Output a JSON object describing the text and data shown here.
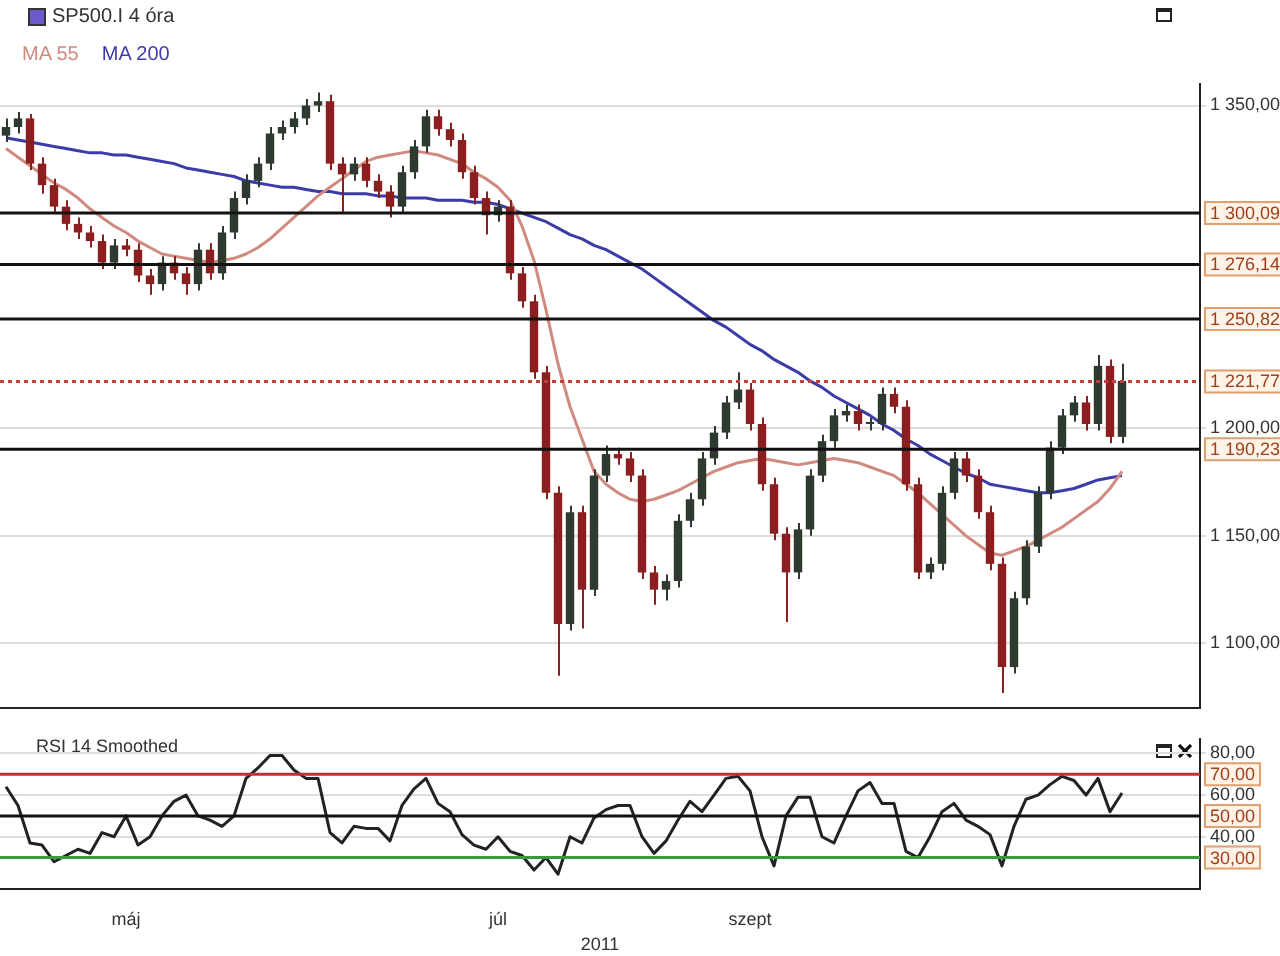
{
  "chart_data": [
    {
      "type": "candlestick",
      "title": "SP500.I 4 óra",
      "categories": [
        null,
        null,
        null,
        null,
        null,
        null,
        null,
        null,
        null,
        null,
        null,
        null,
        null,
        null,
        null,
        null,
        null,
        null,
        null,
        null,
        null,
        null,
        null,
        null,
        null,
        null,
        null,
        null,
        null,
        null,
        null,
        null,
        null,
        null,
        null,
        null,
        null,
        null,
        null,
        null,
        null,
        null,
        null,
        null,
        null,
        null,
        null,
        null,
        null,
        null,
        null,
        null,
        null,
        null,
        null,
        null,
        null,
        null,
        null,
        null,
        null,
        null,
        null,
        null,
        null,
        null,
        null,
        null,
        null,
        null,
        null,
        null,
        null,
        null,
        null,
        null,
        null,
        null,
        null,
        null,
        null,
        null,
        null,
        null,
        null,
        null,
        null,
        null,
        null,
        null,
        null,
        null,
        null,
        null,
        null,
        null,
        null,
        null,
        null,
        null
      ],
      "ohlc": [
        [
          1336,
          1344,
          1333,
          1340
        ],
        [
          1340,
          1347,
          1337,
          1344
        ],
        [
          1344,
          1346,
          1320,
          1323
        ],
        [
          1323,
          1326,
          1309,
          1313
        ],
        [
          1313,
          1316,
          1300,
          1303
        ],
        [
          1303,
          1306,
          1292,
          1295
        ],
        [
          1295,
          1298,
          1288,
          1291
        ],
        [
          1291,
          1294,
          1284,
          1287
        ],
        [
          1287,
          1290,
          1274,
          1277
        ],
        [
          1277,
          1288,
          1274,
          1285
        ],
        [
          1285,
          1288,
          1280,
          1283
        ],
        [
          1283,
          1286,
          1268,
          1271
        ],
        [
          1271,
          1274,
          1262,
          1267
        ],
        [
          1267,
          1280,
          1264,
          1277
        ],
        [
          1277,
          1280,
          1269,
          1272
        ],
        [
          1272,
          1275,
          1262,
          1267
        ],
        [
          1267,
          1286,
          1264,
          1283
        ],
        [
          1283,
          1286,
          1269,
          1272
        ],
        [
          1272,
          1294,
          1269,
          1291
        ],
        [
          1291,
          1310,
          1288,
          1307
        ],
        [
          1307,
          1318,
          1304,
          1315
        ],
        [
          1315,
          1326,
          1312,
          1323
        ],
        [
          1323,
          1340,
          1320,
          1337
        ],
        [
          1337,
          1343,
          1334,
          1340
        ],
        [
          1340,
          1347,
          1337,
          1344
        ],
        [
          1344,
          1353,
          1341,
          1350
        ],
        [
          1350,
          1356,
          1347,
          1352
        ],
        [
          1352,
          1355,
          1320,
          1323
        ],
        [
          1323,
          1326,
          1300,
          1318
        ],
        [
          1318,
          1326,
          1315,
          1323
        ],
        [
          1323,
          1326,
          1312,
          1315
        ],
        [
          1315,
          1318,
          1307,
          1310
        ],
        [
          1310,
          1313,
          1298,
          1303
        ],
        [
          1303,
          1322,
          1300,
          1319
        ],
        [
          1319,
          1334,
          1316,
          1331
        ],
        [
          1331,
          1348,
          1328,
          1345
        ],
        [
          1345,
          1348,
          1336,
          1339
        ],
        [
          1339,
          1342,
          1331,
          1334
        ],
        [
          1334,
          1337,
          1316,
          1319
        ],
        [
          1319,
          1322,
          1304,
          1307
        ],
        [
          1307,
          1310,
          1290,
          1299
        ],
        [
          1299,
          1306,
          1296,
          1303
        ],
        [
          1303,
          1306,
          1269,
          1272
        ],
        [
          1272,
          1275,
          1256,
          1259
        ],
        [
          1259,
          1262,
          1223,
          1226
        ],
        [
          1226,
          1229,
          1167,
          1170
        ],
        [
          1170,
          1173,
          1085,
          1109
        ],
        [
          1109,
          1164,
          1106,
          1161
        ],
        [
          1161,
          1164,
          1107,
          1125
        ],
        [
          1125,
          1181,
          1122,
          1178
        ],
        [
          1178,
          1192,
          1175,
          1188
        ],
        [
          1188,
          1191,
          1183,
          1186
        ],
        [
          1186,
          1189,
          1175,
          1178
        ],
        [
          1178,
          1181,
          1130,
          1133
        ],
        [
          1133,
          1136,
          1118,
          1125
        ],
        [
          1125,
          1132,
          1120,
          1129
        ],
        [
          1129,
          1160,
          1126,
          1157
        ],
        [
          1157,
          1170,
          1154,
          1167
        ],
        [
          1167,
          1189,
          1164,
          1186
        ],
        [
          1186,
          1201,
          1183,
          1198
        ],
        [
          1198,
          1215,
          1195,
          1212
        ],
        [
          1212,
          1226,
          1209,
          1218
        ],
        [
          1218,
          1221,
          1199,
          1202
        ],
        [
          1202,
          1205,
          1171,
          1174
        ],
        [
          1174,
          1177,
          1148,
          1151
        ],
        [
          1151,
          1154,
          1110,
          1133
        ],
        [
          1133,
          1156,
          1130,
          1153
        ],
        [
          1153,
          1181,
          1150,
          1178
        ],
        [
          1178,
          1197,
          1175,
          1194
        ],
        [
          1194,
          1209,
          1191,
          1206
        ],
        [
          1206,
          1211,
          1203,
          1208
        ],
        [
          1208,
          1211,
          1199,
          1202
        ],
        [
          1202,
          1205,
          1199,
          1202
        ],
        [
          1202,
          1219,
          1199,
          1216
        ],
        [
          1216,
          1219,
          1207,
          1210
        ],
        [
          1210,
          1213,
          1171,
          1174
        ],
        [
          1174,
          1177,
          1130,
          1133
        ],
        [
          1133,
          1140,
          1130,
          1137
        ],
        [
          1137,
          1173,
          1134,
          1170
        ],
        [
          1170,
          1189,
          1167,
          1186
        ],
        [
          1186,
          1189,
          1175,
          1178
        ],
        [
          1178,
          1181,
          1158,
          1161
        ],
        [
          1161,
          1164,
          1134,
          1137
        ],
        [
          1137,
          1140,
          1077,
          1089
        ],
        [
          1089,
          1124,
          1086,
          1121
        ],
        [
          1121,
          1148,
          1118,
          1145
        ],
        [
          1145,
          1173,
          1142,
          1170
        ],
        [
          1170,
          1194,
          1167,
          1191
        ],
        [
          1191,
          1209,
          1188,
          1206
        ],
        [
          1206,
          1215,
          1203,
          1212
        ],
        [
          1212,
          1215,
          1199,
          1202
        ],
        [
          1202,
          1234,
          1199,
          1229
        ],
        [
          1229,
          1232,
          1193,
          1196
        ],
        [
          1196,
          1230,
          1193,
          1222
        ],
        null,
        null,
        null,
        null,
        null,
        null
      ],
      "colors": [
        "#2e3a2e",
        "#2e3a2e",
        "#8b1e1e",
        "#8b1e1e",
        "#8b1e1e",
        "#8b1e1e",
        "#8b1e1e",
        "#8b1e1e",
        "#8b1e1e",
        "#2e3a2e",
        "#8b1e1e",
        "#8b1e1e",
        "#8b1e1e",
        "#2e3a2e",
        "#8b1e1e",
        "#8b1e1e",
        "#2e3a2e",
        "#8b1e1e",
        "#2e3a2e",
        "#2e3a2e",
        "#2e3a2e",
        "#2e3a2e",
        "#2e3a2e",
        "#2e3a2e",
        "#2e3a2e",
        "#2e3a2e",
        "#2e3a2e",
        "#8b1e1e",
        "#8b1e1e",
        "#2e3a2e",
        "#8b1e1e",
        "#8b1e1e",
        "#8b1e1e",
        "#2e3a2e",
        "#2e3a2e",
        "#2e3a2e",
        "#8b1e1e",
        "#8b1e1e",
        "#8b1e1e",
        "#8b1e1e",
        "#8b1e1e",
        "#2e3a2e",
        "#8b1e1e",
        "#8b1e1e",
        "#8b1e1e",
        "#8b1e1e",
        "#8b1e1e",
        "#2e3a2e",
        "#8b1e1e",
        "#2e3a2e",
        "#2e3a2e",
        "#8b1e1e",
        "#8b1e1e",
        "#8b1e1e",
        "#8b1e1e",
        "#2e3a2e",
        "#2e3a2e",
        "#2e3a2e",
        "#2e3a2e",
        "#2e3a2e",
        "#2e3a2e",
        "#2e3a2e",
        "#8b1e1e",
        "#8b1e1e",
        "#8b1e1e",
        "#8b1e1e",
        "#2e3a2e",
        "#2e3a2e",
        "#2e3a2e",
        "#2e3a2e",
        "#2e3a2e",
        "#8b1e1e",
        "#2e3a2e",
        "#2e3a2e",
        "#8b1e1e",
        "#8b1e1e",
        "#8b1e1e",
        "#2e3a2e",
        "#2e3a2e",
        "#2e3a2e",
        "#8b1e1e",
        "#8b1e1e",
        "#8b1e1e",
        "#8b1e1e",
        "#2e3a2e",
        "#2e3a2e",
        "#2e3a2e",
        "#2e3a2e",
        "#2e3a2e",
        "#2e3a2e",
        "#8b1e1e",
        "#2e3a2e",
        "#8b1e1e",
        "#2e3a2e",
        null,
        null,
        null,
        null,
        null,
        null
      ],
      "series": [
        {
          "type": "line",
          "name": "MA 55",
          "color": "#d08a80",
          "values": [
            1330,
            1326,
            1322,
            1318,
            1314,
            1311,
            1307,
            1302,
            1298,
            1294,
            1291,
            1287,
            1284,
            1281,
            1280,
            1279,
            1278,
            1277,
            1278,
            1279,
            1281,
            1284,
            1288,
            1293,
            1298,
            1303,
            1308,
            1312,
            1316,
            1320,
            1324,
            1326,
            1327,
            1328,
            1329,
            1328,
            1327,
            1325,
            1323,
            1319,
            1316,
            1312,
            1306,
            1294,
            1278,
            1255,
            1230,
            1210,
            1195,
            1180,
            1174,
            1170,
            1167,
            1166,
            1167,
            1169,
            1171,
            1174,
            1177,
            1180,
            1182,
            1184,
            1185,
            1186,
            1185,
            1184,
            1183,
            1184,
            1185,
            1186,
            1185,
            1184,
            1182,
            1180,
            1178,
            1174,
            1170,
            1165,
            1160,
            1155,
            1150,
            1146,
            1142,
            1141,
            1143,
            1145,
            1148,
            1151,
            1154,
            1158,
            1162,
            1166,
            1172,
            1180,
            null,
            null,
            null,
            null,
            null,
            null
          ]
        },
        {
          "type": "line",
          "name": "MA 200",
          "color": "#3c3ca8",
          "values": [
            1335,
            1334,
            1333,
            1332,
            1331,
            1330,
            1329,
            1328,
            1328,
            1327,
            1327,
            1326,
            1325,
            1324,
            1323,
            1321,
            1320,
            1319,
            1318,
            1317,
            1315,
            1314,
            1313,
            1312,
            1312,
            1311,
            1310,
            1310,
            1309,
            1309,
            1309,
            1308,
            1308,
            1307,
            1307,
            1307,
            1306,
            1306,
            1306,
            1305,
            1305,
            1304,
            1302,
            1300,
            1298,
            1296,
            1293,
            1290,
            1288,
            1285,
            1283,
            1280,
            1277,
            1274,
            1270,
            1266,
            1262,
            1258,
            1254,
            1250,
            1247,
            1243,
            1239,
            1236,
            1232,
            1229,
            1226,
            1222,
            1219,
            1215,
            1212,
            1209,
            1206,
            1202,
            1199,
            1195,
            1192,
            1188,
            1185,
            1182,
            1179,
            1177,
            1174,
            1173,
            1172,
            1171,
            1170,
            1170,
            1171,
            1172,
            1174,
            1176,
            1177,
            1178,
            null,
            null,
            null,
            null,
            null,
            null
          ]
        }
      ],
      "ylim": [
        1070,
        1360
      ],
      "yticks": [
        {
          "value": 1350,
          "label": "1 350,00"
        },
        {
          "value": 1200,
          "label": "1 200,00"
        },
        {
          "value": 1150,
          "label": "1 150,00"
        },
        {
          "value": 1100,
          "label": "1 100,00"
        }
      ],
      "ref_lines": [
        {
          "axis": "y",
          "value": 1300.09,
          "label": "1 300,09",
          "color": "#111111"
        },
        {
          "axis": "y",
          "value": 1276.14,
          "label": "1 276,14",
          "color": "#111111"
        },
        {
          "axis": "y",
          "value": 1250.82,
          "label": "1 250,82",
          "color": "#111111"
        },
        {
          "axis": "y",
          "value": 1221.77,
          "label": "1 221,77",
          "color": "#c04040",
          "line_style": "dotted"
        },
        {
          "axis": "y",
          "value": 1190.23,
          "label": "1 190,23",
          "color": "#111111"
        }
      ],
      "grid": "y",
      "legend": "top left",
      "tick_labels": "y",
      "marker": "none"
    },
    {
      "type": "line",
      "title": "RSI 14 Smoothed",
      "xlabel": "2011",
      "categories": [
        null,
        null,
        null,
        null,
        null,
        null,
        null,
        null,
        null,
        null,
        "máj",
        null,
        null,
        null,
        null,
        null,
        null,
        null,
        null,
        null,
        null,
        null,
        null,
        null,
        null,
        null,
        null,
        null,
        null,
        null,
        null,
        null,
        null,
        null,
        null,
        null,
        null,
        null,
        null,
        null,
        null,
        "júl",
        null,
        null,
        null,
        null,
        null,
        null,
        null,
        null,
        null,
        null,
        null,
        null,
        null,
        null,
        null,
        null,
        null,
        null,
        null,
        null,
        "szept",
        null,
        null,
        null,
        null,
        null,
        null,
        null,
        null,
        null,
        null,
        null,
        null,
        null,
        null,
        null,
        null,
        null,
        null,
        null,
        null,
        null,
        null,
        null,
        null,
        null,
        null,
        null,
        null,
        null,
        null,
        null,
        null,
        null,
        null,
        null,
        null,
        null
      ],
      "series": [
        {
          "color": "#222222",
          "values": [
            64,
            55,
            37,
            36,
            28,
            31,
            34,
            32,
            42,
            40,
            50,
            36,
            40,
            50,
            57,
            60,
            50,
            48,
            45,
            50,
            68,
            73,
            79,
            79,
            72,
            68,
            68,
            42,
            37,
            45,
            44,
            44,
            38,
            55,
            63,
            68,
            56,
            52,
            41,
            36,
            34,
            40,
            33,
            31,
            24,
            30,
            22,
            40,
            37,
            49,
            53,
            55,
            55,
            40,
            32,
            38,
            48,
            57,
            52,
            60,
            68,
            69,
            62,
            40,
            26,
            50,
            59,
            59,
            40,
            37,
            50,
            62,
            66,
            56,
            56,
            33,
            30,
            40,
            52,
            56,
            48,
            45,
            41,
            26,
            45,
            58,
            60,
            65,
            69,
            67,
            60,
            68,
            52,
            61,
            null,
            null,
            null,
            null,
            null,
            null
          ]
        }
      ],
      "ylim": [
        15,
        87
      ],
      "yticks": [
        {
          "value": 80,
          "label": "80,00"
        },
        {
          "value": 60,
          "label": "60,00"
        },
        {
          "value": 40,
          "label": "40,00"
        }
      ],
      "ref_lines": [
        {
          "axis": "y",
          "value": 70,
          "label": "70,00",
          "color": "#c03030"
        },
        {
          "axis": "y",
          "value": 50,
          "label": "50,00",
          "color": "#111111"
        },
        {
          "axis": "y",
          "value": 30,
          "label": "30,00",
          "color": "#3a9a3a"
        }
      ],
      "grid": "y",
      "marker": "none"
    }
  ]
}
